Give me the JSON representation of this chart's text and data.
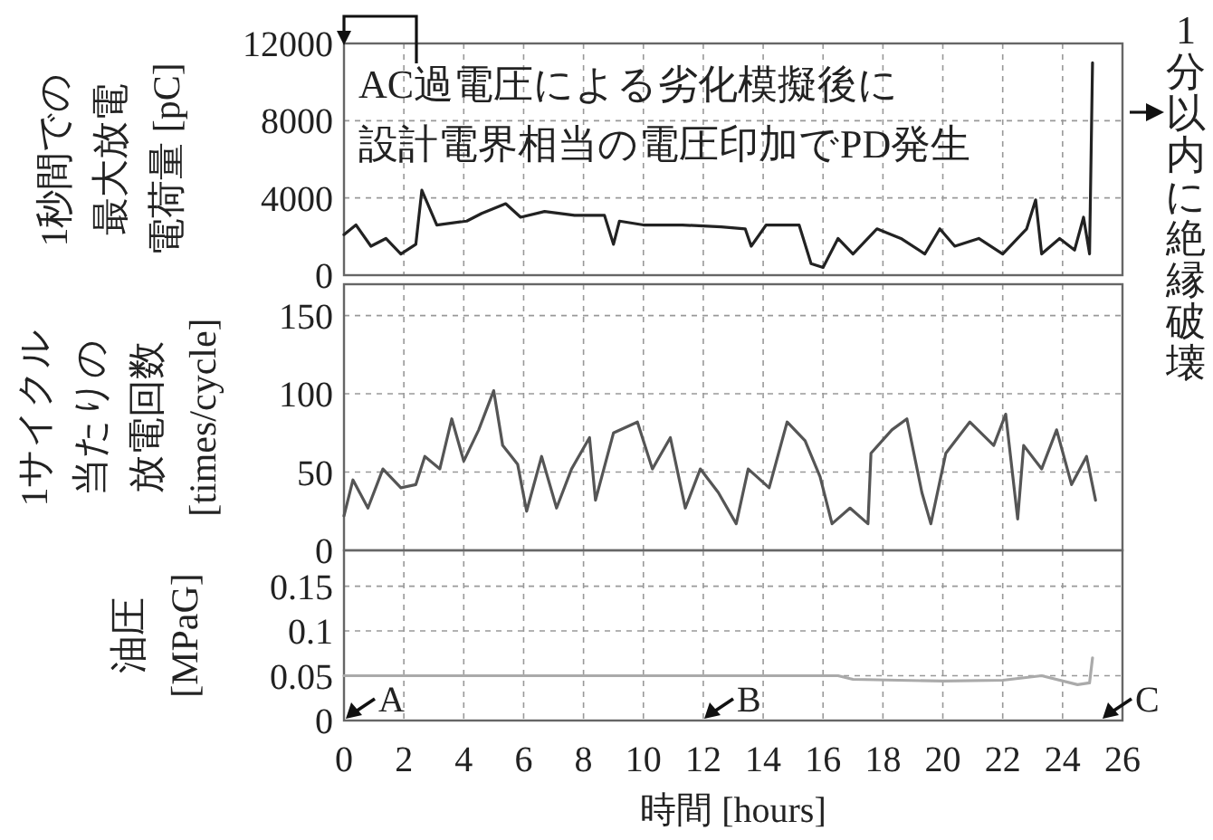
{
  "chart_data": [
    {
      "type": "line",
      "ylabel": "1秒間での最大放電電荷量 [pC]",
      "xlim": [
        0,
        26
      ],
      "xticks": [
        0,
        2,
        4,
        6,
        8,
        10,
        12,
        14,
        16,
        18,
        20,
        22,
        24,
        26
      ],
      "ylim": [
        0,
        12000
      ],
      "yticks": [
        0,
        4000,
        8000,
        12000
      ],
      "grid": true,
      "tick_labels": "y",
      "annotations": [
        "AC過電圧による劣化模擬後に設計電界相当の電圧印加でPD発生",
        "1分以内に絶縁破壊"
      ],
      "series": [
        {
          "color": "#222222",
          "x": [
            0,
            0.4,
            0.9,
            1.4,
            1.9,
            2.4,
            2.6,
            3.1,
            4.1,
            4.6,
            5.4,
            5.9,
            6.7,
            7.7,
            8.7,
            9.0,
            9.2,
            10.0,
            11.3,
            12.6,
            13.4,
            13.6,
            14.1,
            15.2,
            15.6,
            16.0,
            16.5,
            17.0,
            17.8,
            18.6,
            19.4,
            19.9,
            20.4,
            21.2,
            22.0,
            22.8,
            23.1,
            23.3,
            23.9,
            24.4,
            24.7,
            24.9,
            25.0
          ],
          "values": [
            2100,
            2600,
            1500,
            1900,
            1100,
            1600,
            4400,
            2600,
            2800,
            3200,
            3700,
            3000,
            3300,
            3100,
            3100,
            1600,
            2800,
            2600,
            2600,
            2500,
            2400,
            1500,
            2600,
            2600,
            600,
            400,
            1900,
            1100,
            2400,
            1900,
            1100,
            2400,
            1500,
            1900,
            1100,
            2400,
            3900,
            1100,
            1900,
            1300,
            3000,
            1100,
            11000
          ]
        }
      ]
    },
    {
      "type": "line",
      "ylabel": "1サイクル当たりの放電回数[times/cycle]",
      "xlim": [
        0,
        26
      ],
      "xticks": [
        0,
        2,
        4,
        6,
        8,
        10,
        12,
        14,
        16,
        18,
        20,
        22,
        24,
        26
      ],
      "ylim": [
        0,
        170
      ],
      "yticks": [
        0,
        50,
        100,
        150
      ],
      "grid": true,
      "tick_labels": "y",
      "series": [
        {
          "color": "#555555",
          "x": [
            0,
            0.3,
            0.8,
            1.3,
            1.9,
            2.4,
            2.7,
            3.2,
            3.6,
            4.0,
            4.5,
            5.0,
            5.3,
            5.8,
            6.1,
            6.6,
            7.1,
            7.6,
            8.2,
            8.4,
            9.0,
            9.8,
            10.3,
            10.9,
            11.4,
            11.9,
            12.5,
            13.1,
            13.5,
            14.2,
            14.8,
            15.4,
            15.9,
            16.3,
            16.9,
            17.5,
            17.6,
            18.3,
            18.8,
            19.3,
            19.6,
            20.1,
            20.9,
            21.7,
            22.1,
            22.5,
            22.7,
            23.3,
            23.8,
            24.3,
            24.8,
            25.1
          ],
          "values": [
            22,
            45,
            27,
            52,
            40,
            42,
            60,
            52,
            84,
            57,
            77,
            102,
            67,
            55,
            25,
            60,
            27,
            52,
            72,
            32,
            75,
            82,
            52,
            72,
            27,
            52,
            37,
            17,
            52,
            40,
            82,
            70,
            47,
            17,
            27,
            17,
            62,
            77,
            84,
            37,
            17,
            62,
            82,
            67,
            87,
            20,
            67,
            52,
            77,
            42,
            60,
            32
          ]
        }
      ]
    },
    {
      "type": "line",
      "ylabel": "油圧[MPaG]",
      "xlabel": "時間 [hours]",
      "xlim": [
        0,
        26
      ],
      "xticks": [
        0,
        2,
        4,
        6,
        8,
        10,
        12,
        14,
        16,
        18,
        20,
        22,
        24,
        26
      ],
      "ylim": [
        0,
        0.19
      ],
      "yticks": [
        0,
        0.05,
        0.1,
        0.15
      ],
      "grid": true,
      "annotations": [
        "A",
        "B",
        "C"
      ],
      "series": [
        {
          "color": "#aaaaaa",
          "x": [
            0,
            16.5,
            17.0,
            20.0,
            22.0,
            23.3,
            24.5,
            24.9,
            25.0
          ],
          "values": [
            0.05,
            0.05,
            0.046,
            0.044,
            0.045,
            0.05,
            0.04,
            0.042,
            0.07
          ]
        }
      ]
    }
  ]
}
